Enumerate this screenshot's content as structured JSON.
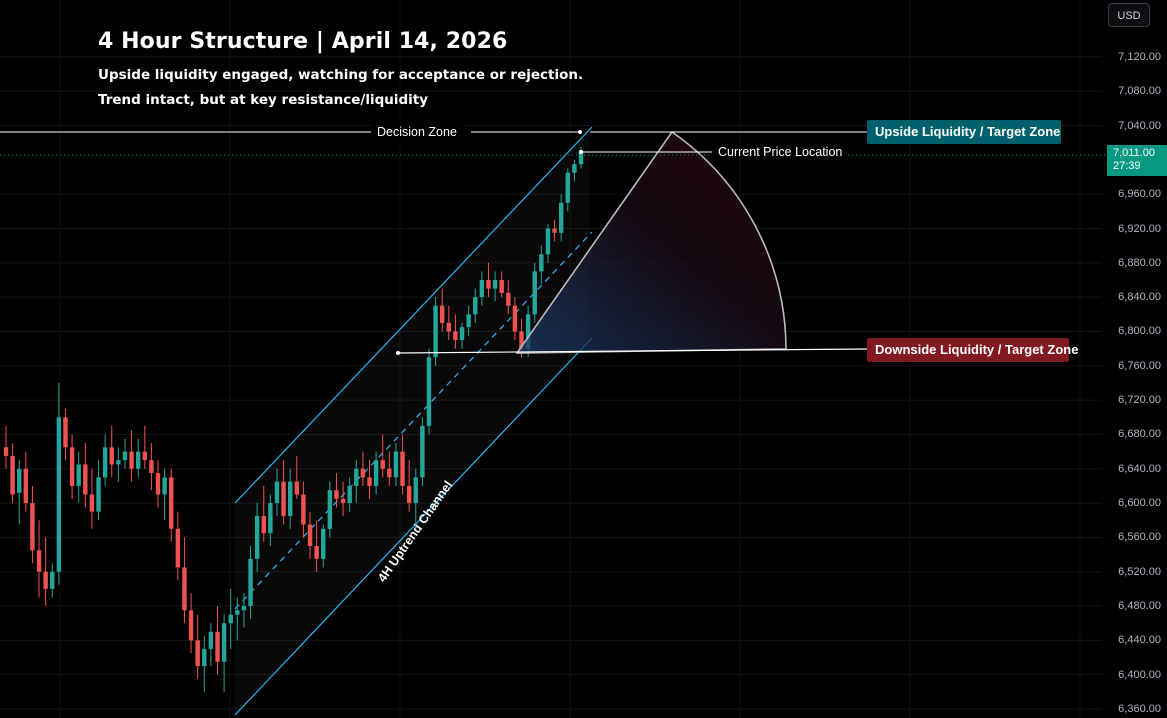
{
  "header": {
    "title": "4 Hour Structure | April 14, 2026",
    "subtitle_line1": "Upside liquidity engaged, watching for acceptance or rejection.",
    "subtitle_line2": "Trend intact, but at key resistance/liquidity"
  },
  "currency_button": "USD",
  "current_price": {
    "price": "7,011.00",
    "countdown": "27:39"
  },
  "annotations": {
    "decision_zone": "Decision Zone",
    "current_price_location": "Current Price Location",
    "upside_zone": "Upside Liquidity / Target Zone",
    "downside_zone": "Downside Liquidity / Target Zone",
    "channel": "4H Uptrend Channel"
  },
  "colors": {
    "background": "#000000",
    "up_candle": "#26a69a",
    "down_candle": "#ef5350",
    "channel_line": "#29b6f6",
    "price_tag": "#089981",
    "upside_zone_bg": "#00606b",
    "downside_zone_bg": "#801922"
  },
  "chart_data": {
    "type": "candlestick",
    "timeframe": "4H",
    "y_axis": {
      "min": 6360,
      "max": 7120,
      "ticks": [
        "7,120.00",
        "7,080.00",
        "7,040.00",
        "6,960.00",
        "6,920.00",
        "6,880.00",
        "6,840.00",
        "6,800.00",
        "6,760.00",
        "6,720.00",
        "6,680.00",
        "6,640.00",
        "6,600.00",
        "6,560.00",
        "6,520.00",
        "6,480.00",
        "6,440.00",
        "6,400.00",
        "6,360.00"
      ]
    },
    "levels": {
      "decision_zone": 7033,
      "upside_target": 7033,
      "downside_target": 6782,
      "current_price": 7011
    },
    "candles": [
      [
        6665,
        6690,
        6640,
        6655
      ],
      [
        6655,
        6670,
        6600,
        6610
      ],
      [
        6612,
        6650,
        6575,
        6640
      ],
      [
        6640,
        6660,
        6590,
        6600
      ],
      [
        6600,
        6620,
        6530,
        6545
      ],
      [
        6545,
        6580,
        6490,
        6520
      ],
      [
        6520,
        6560,
        6480,
        6500
      ],
      [
        6500,
        6530,
        6490,
        6520
      ],
      [
        6520,
        6740,
        6505,
        6700
      ],
      [
        6700,
        6710,
        6650,
        6665
      ],
      [
        6665,
        6680,
        6605,
        6620
      ],
      [
        6620,
        6660,
        6600,
        6645
      ],
      [
        6645,
        6670,
        6595,
        6610
      ],
      [
        6610,
        6640,
        6570,
        6590
      ],
      [
        6590,
        6650,
        6580,
        6630
      ],
      [
        6630,
        6680,
        6620,
        6665
      ],
      [
        6665,
        6690,
        6630,
        6645
      ],
      [
        6645,
        6665,
        6625,
        6650
      ],
      [
        6650,
        6675,
        6640,
        6660
      ],
      [
        6660,
        6685,
        6625,
        6640
      ],
      [
        6640,
        6675,
        6630,
        6660
      ],
      [
        6660,
        6690,
        6640,
        6650
      ],
      [
        6650,
        6670,
        6615,
        6635
      ],
      [
        6635,
        6650,
        6595,
        6610
      ],
      [
        6610,
        6640,
        6580,
        6630
      ],
      [
        6630,
        6640,
        6555,
        6570
      ],
      [
        6570,
        6590,
        6510,
        6525
      ],
      [
        6525,
        6560,
        6460,
        6475
      ],
      [
        6475,
        6495,
        6425,
        6440
      ],
      [
        6440,
        6470,
        6395,
        6410
      ],
      [
        6410,
        6445,
        6380,
        6430
      ],
      [
        6430,
        6460,
        6410,
        6450
      ],
      [
        6450,
        6480,
        6400,
        6415
      ],
      [
        6415,
        6470,
        6380,
        6460
      ],
      [
        6460,
        6500,
        6430,
        6470
      ],
      [
        6470,
        6490,
        6440,
        6475
      ],
      [
        6475,
        6495,
        6455,
        6480
      ],
      [
        6480,
        6550,
        6465,
        6535
      ],
      [
        6535,
        6600,
        6520,
        6585
      ],
      [
        6585,
        6620,
        6555,
        6565
      ],
      [
        6565,
        6610,
        6550,
        6600
      ],
      [
        6600,
        6640,
        6585,
        6625
      ],
      [
        6625,
        6650,
        6575,
        6585
      ],
      [
        6585,
        6640,
        6570,
        6625
      ],
      [
        6625,
        6655,
        6605,
        6610
      ],
      [
        6610,
        6625,
        6560,
        6575
      ],
      [
        6575,
        6590,
        6535,
        6550
      ],
      [
        6550,
        6580,
        6520,
        6535
      ],
      [
        6535,
        6575,
        6525,
        6570
      ],
      [
        6570,
        6625,
        6560,
        6615
      ],
      [
        6615,
        6635,
        6595,
        6605
      ],
      [
        6605,
        6625,
        6585,
        6600
      ],
      [
        6600,
        6630,
        6590,
        6620
      ],
      [
        6620,
        6650,
        6600,
        6640
      ],
      [
        6640,
        6660,
        6620,
        6630
      ],
      [
        6630,
        6650,
        6605,
        6620
      ],
      [
        6620,
        6660,
        6610,
        6650
      ],
      [
        6650,
        6680,
        6630,
        6640
      ],
      [
        6640,
        6660,
        6620,
        6630
      ],
      [
        6630,
        6670,
        6620,
        6660
      ],
      [
        6660,
        6680,
        6610,
        6620
      ],
      [
        6620,
        6650,
        6590,
        6600
      ],
      [
        6600,
        6640,
        6570,
        6630
      ],
      [
        6630,
        6700,
        6620,
        6690
      ],
      [
        6690,
        6780,
        6680,
        6770
      ],
      [
        6770,
        6840,
        6760,
        6830
      ],
      [
        6830,
        6850,
        6800,
        6810
      ],
      [
        6810,
        6830,
        6790,
        6800
      ],
      [
        6800,
        6820,
        6780,
        6790
      ],
      [
        6790,
        6810,
        6780,
        6805
      ],
      [
        6805,
        6830,
        6795,
        6820
      ],
      [
        6820,
        6850,
        6810,
        6840
      ],
      [
        6840,
        6870,
        6830,
        6860
      ],
      [
        6860,
        6880,
        6840,
        6850
      ],
      [
        6850,
        6870,
        6835,
        6860
      ],
      [
        6860,
        6870,
        6840,
        6845
      ],
      [
        6845,
        6860,
        6820,
        6830
      ],
      [
        6830,
        6840,
        6790,
        6800
      ],
      [
        6800,
        6815,
        6770,
        6780
      ],
      [
        6780,
        6830,
        6770,
        6820
      ],
      [
        6820,
        6880,
        6810,
        6870
      ],
      [
        6870,
        6900,
        6855,
        6890
      ],
      [
        6890,
        6925,
        6880,
        6920
      ],
      [
        6920,
        6930,
        6905,
        6915
      ],
      [
        6915,
        6960,
        6905,
        6950
      ],
      [
        6950,
        6990,
        6940,
        6985
      ],
      [
        6985,
        7000,
        6975,
        6995
      ],
      [
        6995,
        7015,
        6990,
        7011
      ]
    ]
  }
}
